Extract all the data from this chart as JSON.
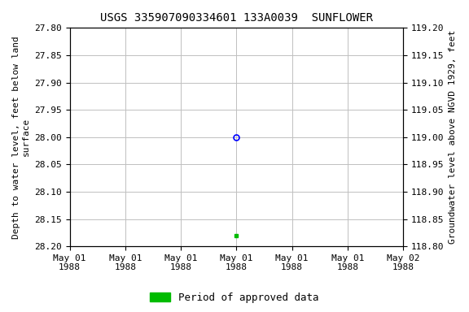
{
  "title": "USGS 335907090334601 133A0039  SUNFLOWER",
  "ylabel_left": "Depth to water level, feet below land\nsurface",
  "ylabel_right": "Groundwater level above NGVD 1929, feet",
  "ylim_left_top": 27.8,
  "ylim_left_bottom": 28.2,
  "ylim_right_top": 119.2,
  "ylim_right_bottom": 118.8,
  "yticks_left": [
    27.8,
    27.85,
    27.9,
    27.95,
    28.0,
    28.05,
    28.1,
    28.15,
    28.2
  ],
  "yticks_right": [
    119.2,
    119.15,
    119.1,
    119.05,
    119.0,
    118.95,
    118.9,
    118.85,
    118.8
  ],
  "xlim": [
    0,
    6
  ],
  "xtick_positions": [
    0,
    1,
    2,
    3,
    4,
    5,
    6
  ],
  "xtick_labels": [
    "May 01\n1988",
    "May 01\n1988",
    "May 01\n1988",
    "May 01\n1988",
    "May 01\n1988",
    "May 01\n1988",
    "May 02\n1988"
  ],
  "data_blue_x": 3.0,
  "data_blue_y": 28.0,
  "data_green_x": 3.0,
  "data_green_y": 28.18,
  "bg_color": "#ffffff",
  "grid_color": "#c0c0c0",
  "title_fontsize": 10,
  "axis_label_fontsize": 8,
  "tick_fontsize": 8,
  "legend_label": "Period of approved data",
  "legend_color": "#00bb00"
}
